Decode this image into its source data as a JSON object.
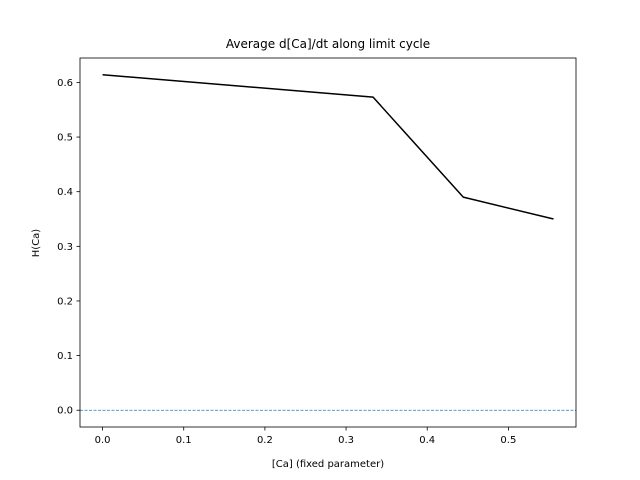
{
  "chart_data": {
    "type": "line",
    "title": "Average d[Ca]/dt along limit cycle",
    "xlabel": "[Ca] (fixed parameter)",
    "ylabel": "H(Ca)",
    "xlim": [
      -0.0278,
      0.5833
    ],
    "ylim": [
      -0.0307,
      0.6447
    ],
    "xticks": [
      0.0,
      0.1,
      0.2,
      0.3,
      0.4,
      0.5
    ],
    "xtick_labels": [
      "0.0",
      "0.1",
      "0.2",
      "0.3",
      "0.4",
      "0.5"
    ],
    "yticks": [
      0.0,
      0.1,
      0.2,
      0.3,
      0.4,
      0.5,
      0.6
    ],
    "ytick_labels": [
      "0.0",
      "0.1",
      "0.2",
      "0.3",
      "0.4",
      "0.5",
      "0.6"
    ],
    "grid": false,
    "series": [
      {
        "x": [
          0.0,
          0.3333,
          0.4444,
          0.5556
        ],
        "y": [
          0.614,
          0.573,
          0.39,
          0.35
        ],
        "color": "#000000"
      }
    ],
    "reference_lines": [
      {
        "orientation": "horizontal",
        "y": 0.0,
        "style": "dashed",
        "color": "#1f77b4"
      }
    ]
  }
}
